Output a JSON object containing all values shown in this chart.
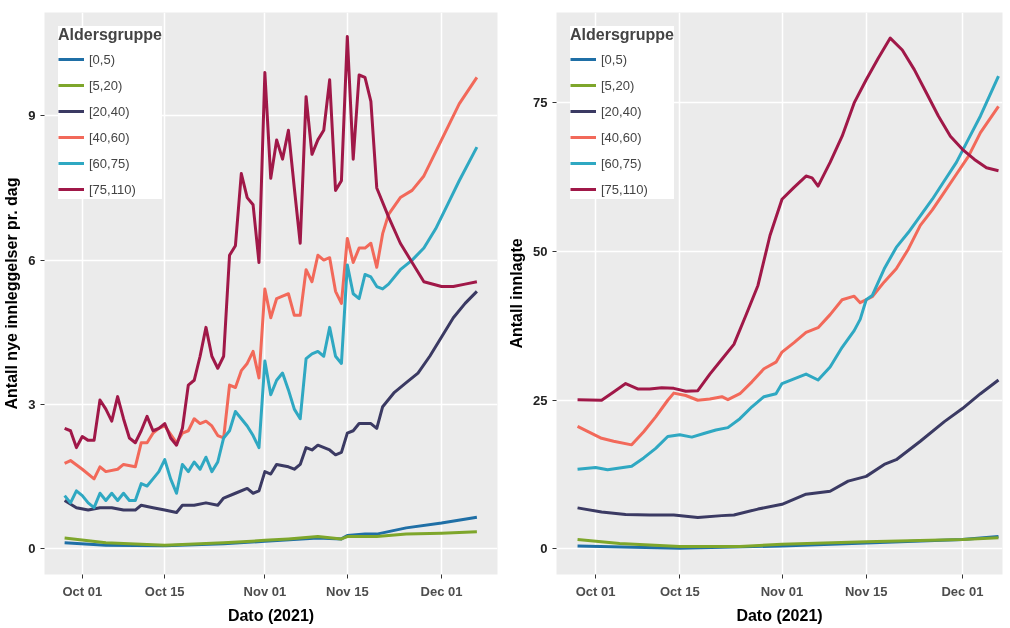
{
  "chart_data": [
    {
      "type": "line",
      "xlabel": "Dato (2021)",
      "ylabel": "Antall nye innleggelser pr. dag",
      "legend_title": "Aldersgruppe",
      "legend": "top left",
      "grid": true,
      "xlim": [
        "2021-09-24T14:00",
        "2021-12-10T12:00"
      ],
      "ylim": [
        -0.54,
        11.15
      ],
      "xticks": [
        {
          "value": "2021-10-01",
          "label": "Oct 01"
        },
        {
          "value": "2021-10-15",
          "label": "Oct 15"
        },
        {
          "value": "2021-11-01",
          "label": "Nov 01"
        },
        {
          "value": "2021-11-15",
          "label": "Nov 15"
        },
        {
          "value": "2021-12-01",
          "label": "Dec 01"
        }
      ],
      "yticks": [
        0,
        3,
        6,
        9
      ],
      "series": [
        {
          "name": "[0,5)",
          "color": "#1f6fa6",
          "x": [
            "2021-09-28",
            "2021-10-05",
            "2021-10-15",
            "2021-10-25",
            "2021-11-01",
            "2021-11-10",
            "2021-11-14",
            "2021-11-15",
            "2021-11-18",
            "2021-11-20",
            "2021-11-25",
            "2021-12-01",
            "2021-12-07"
          ],
          "values": [
            0.12,
            0.07,
            0.06,
            0.1,
            0.15,
            0.22,
            0.2,
            0.27,
            0.3,
            0.3,
            0.43,
            0.53,
            0.65
          ]
        },
        {
          "name": "[5,20)",
          "color": "#7ea62b",
          "x": [
            "2021-09-28",
            "2021-10-05",
            "2021-10-15",
            "2021-10-25",
            "2021-11-01",
            "2021-11-05",
            "2021-11-10",
            "2021-11-14",
            "2021-11-15",
            "2021-11-20",
            "2021-11-25",
            "2021-12-01",
            "2021-12-07"
          ],
          "values": [
            0.22,
            0.12,
            0.07,
            0.12,
            0.17,
            0.2,
            0.25,
            0.2,
            0.25,
            0.25,
            0.3,
            0.32,
            0.35
          ]
        },
        {
          "name": "[20,40)",
          "color": "#3b3a63",
          "x": [
            "2021-09-28",
            "2021-09-30",
            "2021-10-02",
            "2021-10-04",
            "2021-10-06",
            "2021-10-08",
            "2021-10-10",
            "2021-10-11",
            "2021-10-13",
            "2021-10-15",
            "2021-10-17",
            "2021-10-18",
            "2021-10-20",
            "2021-10-22",
            "2021-10-24",
            "2021-10-25",
            "2021-10-27",
            "2021-10-29",
            "2021-10-30",
            "2021-10-31",
            "2021-11-01",
            "2021-11-02",
            "2021-11-03",
            "2021-11-05",
            "2021-11-06",
            "2021-11-07",
            "2021-11-08",
            "2021-11-09",
            "2021-11-10",
            "2021-11-12",
            "2021-11-13",
            "2021-11-14",
            "2021-11-15",
            "2021-11-16",
            "2021-11-17",
            "2021-11-19",
            "2021-11-20",
            "2021-11-21",
            "2021-11-23",
            "2021-11-25",
            "2021-11-27",
            "2021-11-29",
            "2021-12-01",
            "2021-12-03",
            "2021-12-05",
            "2021-12-07"
          ],
          "values": [
            1.0,
            0.85,
            0.8,
            0.85,
            0.85,
            0.8,
            0.8,
            0.9,
            0.85,
            0.8,
            0.75,
            0.9,
            0.9,
            0.95,
            0.9,
            1.05,
            1.15,
            1.25,
            1.15,
            1.2,
            1.6,
            1.55,
            1.75,
            1.7,
            1.65,
            1.75,
            2.1,
            2.05,
            2.15,
            2.05,
            1.95,
            2.0,
            2.4,
            2.45,
            2.6,
            2.6,
            2.5,
            2.95,
            3.25,
            3.45,
            3.65,
            4.0,
            4.4,
            4.8,
            5.1,
            5.35
          ]
        },
        {
          "name": "[40,60)",
          "color": "#f2695a",
          "x": [
            "2021-09-28",
            "2021-09-29",
            "2021-10-01",
            "2021-10-03",
            "2021-10-04",
            "2021-10-05",
            "2021-10-07",
            "2021-10-08",
            "2021-10-10",
            "2021-10-11",
            "2021-10-12",
            "2021-10-13",
            "2021-10-14",
            "2021-10-15",
            "2021-10-17",
            "2021-10-18",
            "2021-10-19",
            "2021-10-20",
            "2021-10-21",
            "2021-10-22",
            "2021-10-23",
            "2021-10-24",
            "2021-10-25",
            "2021-10-26",
            "2021-10-27",
            "2021-10-28",
            "2021-10-29",
            "2021-10-30",
            "2021-10-31",
            "2021-11-01",
            "2021-11-02",
            "2021-11-03",
            "2021-11-04",
            "2021-11-05",
            "2021-11-06",
            "2021-11-07",
            "2021-11-08",
            "2021-11-09",
            "2021-11-10",
            "2021-11-11",
            "2021-11-12",
            "2021-11-13",
            "2021-11-14",
            "2021-11-15",
            "2021-11-16",
            "2021-11-17",
            "2021-11-18",
            "2021-11-19",
            "2021-11-20",
            "2021-11-21",
            "2021-11-22",
            "2021-11-24",
            "2021-11-26",
            "2021-11-28",
            "2021-11-30",
            "2021-12-02",
            "2021-12-04",
            "2021-12-07"
          ],
          "values": [
            1.77,
            1.83,
            1.65,
            1.45,
            1.7,
            1.6,
            1.65,
            1.75,
            1.7,
            2.2,
            2.2,
            2.4,
            2.5,
            2.55,
            2.2,
            2.4,
            2.45,
            2.7,
            2.6,
            2.65,
            2.55,
            2.35,
            2.3,
            3.4,
            3.35,
            3.7,
            3.85,
            4.1,
            3.55,
            5.4,
            4.8,
            5.2,
            5.25,
            5.3,
            4.85,
            4.85,
            5.8,
            5.55,
            6.1,
            6.0,
            6.05,
            5.35,
            5.1,
            6.45,
            5.95,
            6.25,
            6.25,
            6.35,
            5.85,
            6.55,
            6.95,
            7.3,
            7.45,
            7.75,
            8.25,
            8.75,
            9.25,
            9.8
          ]
        },
        {
          "name": "[60,75)",
          "color": "#2fa8c2",
          "x": [
            "2021-09-28",
            "2021-09-29",
            "2021-09-30",
            "2021-10-01",
            "2021-10-02",
            "2021-10-03",
            "2021-10-04",
            "2021-10-05",
            "2021-10-06",
            "2021-10-07",
            "2021-10-08",
            "2021-10-09",
            "2021-10-10",
            "2021-10-11",
            "2021-10-12",
            "2021-10-13",
            "2021-10-14",
            "2021-10-15",
            "2021-10-16",
            "2021-10-17",
            "2021-10-18",
            "2021-10-19",
            "2021-10-20",
            "2021-10-21",
            "2021-10-22",
            "2021-10-23",
            "2021-10-24",
            "2021-10-25",
            "2021-10-26",
            "2021-10-27",
            "2021-10-28",
            "2021-10-29",
            "2021-10-30",
            "2021-10-31",
            "2021-11-01",
            "2021-11-02",
            "2021-11-03",
            "2021-11-04",
            "2021-11-05",
            "2021-11-06",
            "2021-11-07",
            "2021-11-08",
            "2021-11-09",
            "2021-11-10",
            "2021-11-11",
            "2021-11-12",
            "2021-11-13",
            "2021-11-14",
            "2021-11-15",
            "2021-11-16",
            "2021-11-17",
            "2021-11-18",
            "2021-11-19",
            "2021-11-20",
            "2021-11-21",
            "2021-11-22",
            "2021-11-24",
            "2021-11-26",
            "2021-11-28",
            "2021-11-30",
            "2021-12-02",
            "2021-12-04",
            "2021-12-07"
          ],
          "values": [
            1.1,
            0.95,
            1.2,
            1.1,
            0.95,
            0.85,
            1.15,
            1.0,
            1.15,
            1.0,
            1.15,
            1.0,
            1.0,
            1.35,
            1.3,
            1.45,
            1.6,
            1.85,
            1.45,
            1.15,
            1.75,
            1.6,
            1.8,
            1.65,
            1.9,
            1.6,
            1.8,
            2.3,
            2.45,
            2.85,
            2.7,
            2.55,
            2.35,
            2.1,
            3.9,
            3.2,
            3.5,
            3.65,
            3.3,
            2.9,
            2.7,
            3.95,
            4.05,
            4.1,
            4.0,
            4.6,
            4.0,
            3.85,
            5.9,
            5.3,
            5.2,
            5.7,
            5.65,
            5.45,
            5.4,
            5.5,
            5.8,
            6.0,
            6.25,
            6.65,
            7.15,
            7.65,
            8.35
          ]
        },
        {
          "name": "[75,110)",
          "color": "#a01848",
          "x": [
            "2021-09-28",
            "2021-09-29",
            "2021-09-30",
            "2021-10-01",
            "2021-10-02",
            "2021-10-03",
            "2021-10-04",
            "2021-10-05",
            "2021-10-06",
            "2021-10-07",
            "2021-10-08",
            "2021-10-09",
            "2021-10-10",
            "2021-10-11",
            "2021-10-12",
            "2021-10-13",
            "2021-10-14",
            "2021-10-15",
            "2021-10-16",
            "2021-10-17",
            "2021-10-18",
            "2021-10-19",
            "2021-10-20",
            "2021-10-21",
            "2021-10-22",
            "2021-10-23",
            "2021-10-24",
            "2021-10-25",
            "2021-10-26",
            "2021-10-27",
            "2021-10-28",
            "2021-10-29",
            "2021-10-30",
            "2021-10-31",
            "2021-11-01",
            "2021-11-02",
            "2021-11-03",
            "2021-11-04",
            "2021-11-05",
            "2021-11-06",
            "2021-11-07",
            "2021-11-08",
            "2021-11-09",
            "2021-11-10",
            "2021-11-11",
            "2021-11-12",
            "2021-11-13",
            "2021-11-14",
            "2021-11-15",
            "2021-11-16",
            "2021-11-17",
            "2021-11-18",
            "2021-11-19",
            "2021-11-20",
            "2021-11-22",
            "2021-11-24",
            "2021-11-26",
            "2021-11-28",
            "2021-12-01",
            "2021-12-03",
            "2021-12-05",
            "2021-12-07"
          ],
          "values": [
            2.5,
            2.45,
            2.1,
            2.33,
            2.25,
            2.25,
            3.09,
            2.9,
            2.65,
            3.16,
            2.7,
            2.3,
            2.2,
            2.45,
            2.75,
            2.45,
            2.5,
            2.6,
            2.3,
            2.15,
            2.5,
            3.4,
            3.5,
            4.0,
            4.6,
            4.0,
            3.75,
            4.0,
            6.1,
            6.3,
            7.8,
            7.3,
            7.15,
            5.95,
            9.9,
            7.7,
            8.5,
            8.1,
            8.7,
            7.5,
            6.35,
            9.4,
            8.2,
            8.5,
            8.7,
            9.75,
            7.45,
            7.65,
            10.65,
            8.1,
            9.85,
            9.8,
            9.3,
            7.5,
            6.9,
            6.35,
            5.95,
            5.55,
            5.45,
            5.45,
            5.5,
            5.55
          ]
        }
      ]
    },
    {
      "type": "line",
      "xlabel": "Dato (2021)",
      "ylabel": "Antall innlagte",
      "legend_title": "Aldersgruppe",
      "legend": "top left",
      "grid": true,
      "xlim": [
        "2021-09-24T12:00",
        "2021-12-07T16:00"
      ],
      "ylim": [
        -4.3,
        90.2
      ],
      "xticks": [
        {
          "value": "2021-10-01",
          "label": "Oct 01"
        },
        {
          "value": "2021-10-15",
          "label": "Oct 15"
        },
        {
          "value": "2021-11-01",
          "label": "Nov 01"
        },
        {
          "value": "2021-11-15",
          "label": "Nov 15"
        },
        {
          "value": "2021-12-01",
          "label": "Dec 01"
        }
      ],
      "yticks": [
        0,
        25,
        50,
        75
      ],
      "series": [
        {
          "name": "[0,5)",
          "color": "#1f6fa6",
          "x": [
            "2021-09-28",
            "2021-10-15",
            "2021-11-01",
            "2021-11-15",
            "2021-12-01",
            "2021-12-07"
          ],
          "values": [
            0.5,
            0.1,
            0.5,
            1.0,
            1.6,
            2.1
          ]
        },
        {
          "name": "[5,20)",
          "color": "#7ea62b",
          "x": [
            "2021-09-28",
            "2021-10-05",
            "2021-10-15",
            "2021-10-25",
            "2021-11-01",
            "2021-11-15",
            "2021-12-01",
            "2021-12-07"
          ],
          "values": [
            1.6,
            0.9,
            0.4,
            0.4,
            0.8,
            1.2,
            1.6,
            1.9
          ]
        },
        {
          "name": "[20,40)",
          "color": "#3b3a63",
          "x": [
            "2021-09-28",
            "2021-10-02",
            "2021-10-06",
            "2021-10-10",
            "2021-10-14",
            "2021-10-18",
            "2021-10-22",
            "2021-10-24",
            "2021-10-28",
            "2021-11-01",
            "2021-11-05",
            "2021-11-09",
            "2021-11-12",
            "2021-11-15",
            "2021-11-18",
            "2021-11-20",
            "2021-11-24",
            "2021-11-28",
            "2021-12-01",
            "2021-12-04",
            "2021-12-07"
          ],
          "values": [
            6.9,
            6.2,
            5.8,
            5.7,
            5.7,
            5.3,
            5.6,
            5.7,
            6.7,
            7.5,
            9.2,
            9.7,
            11.4,
            12.2,
            14.2,
            15.0,
            18.1,
            21.4,
            23.6,
            26.1,
            28.4
          ]
        },
        {
          "name": "[40,60)",
          "color": "#f2695a",
          "x": [
            "2021-09-28",
            "2021-10-02",
            "2021-10-04",
            "2021-10-07",
            "2021-10-09",
            "2021-10-11",
            "2021-10-13",
            "2021-10-14",
            "2021-10-16",
            "2021-10-18",
            "2021-10-20",
            "2021-10-22",
            "2021-10-23",
            "2021-10-25",
            "2021-10-27",
            "2021-10-29",
            "2021-10-31",
            "2021-11-01",
            "2021-11-03",
            "2021-11-05",
            "2021-11-07",
            "2021-11-09",
            "2021-11-11",
            "2021-11-13",
            "2021-11-14",
            "2021-11-16",
            "2021-11-18",
            "2021-11-20",
            "2021-11-22",
            "2021-11-24",
            "2021-11-26",
            "2021-11-28",
            "2021-11-30",
            "2021-12-02",
            "2021-12-04",
            "2021-12-07"
          ],
          "values": [
            20.6,
            18.6,
            18.1,
            17.5,
            19.7,
            22.2,
            25.0,
            26.2,
            25.8,
            25.0,
            25.2,
            25.6,
            25.1,
            26.1,
            28.1,
            30.3,
            31.4,
            33.1,
            34.7,
            36.4,
            37.2,
            39.4,
            41.9,
            42.5,
            41.4,
            42.4,
            44.9,
            47.1,
            50.4,
            54.4,
            57.0,
            60.0,
            63.0,
            66.0,
            70.0,
            74.4
          ]
        },
        {
          "name": "[60,75)",
          "color": "#2fa8c2",
          "x": [
            "2021-09-28",
            "2021-10-01",
            "2021-10-03",
            "2021-10-05",
            "2021-10-07",
            "2021-10-09",
            "2021-10-11",
            "2021-10-13",
            "2021-10-15",
            "2021-10-17",
            "2021-10-19",
            "2021-10-21",
            "2021-10-23",
            "2021-10-25",
            "2021-10-27",
            "2021-10-29",
            "2021-10-31",
            "2021-11-01",
            "2021-11-03",
            "2021-11-05",
            "2021-11-07",
            "2021-11-09",
            "2021-11-11",
            "2021-11-13",
            "2021-11-14",
            "2021-11-15",
            "2021-11-16",
            "2021-11-18",
            "2021-11-20",
            "2021-11-22",
            "2021-11-24",
            "2021-11-26",
            "2021-11-28",
            "2021-11-30",
            "2021-12-02",
            "2021-12-04",
            "2021-12-07"
          ],
          "values": [
            13.4,
            13.7,
            13.3,
            13.6,
            13.9,
            15.3,
            16.9,
            18.9,
            19.2,
            18.8,
            19.4,
            20.0,
            20.4,
            21.9,
            23.9,
            25.6,
            26.1,
            27.8,
            28.6,
            29.4,
            28.4,
            30.6,
            33.9,
            36.7,
            38.6,
            41.9,
            42.6,
            47.1,
            50.7,
            53.2,
            56.0,
            58.8,
            61.9,
            65.0,
            68.9,
            72.8,
            79.5
          ]
        },
        {
          "name": "[75,110)",
          "color": "#a01848",
          "x": [
            "2021-09-28",
            "2021-10-02",
            "2021-10-04",
            "2021-10-06",
            "2021-10-08",
            "2021-10-10",
            "2021-10-12",
            "2021-10-14",
            "2021-10-16",
            "2021-10-18",
            "2021-10-20",
            "2021-10-22",
            "2021-10-24",
            "2021-10-26",
            "2021-10-28",
            "2021-10-30",
            "2021-11-01",
            "2021-11-03",
            "2021-11-05",
            "2021-11-06",
            "2021-11-07",
            "2021-11-09",
            "2021-11-11",
            "2021-11-13",
            "2021-11-15",
            "2021-11-17",
            "2021-11-19",
            "2021-11-21",
            "2021-11-23",
            "2021-11-25",
            "2021-11-27",
            "2021-11-29",
            "2021-12-01",
            "2021-12-03",
            "2021-12-05",
            "2021-12-07"
          ],
          "values": [
            25.1,
            25.0,
            26.4,
            27.8,
            26.9,
            26.9,
            27.1,
            27.0,
            26.5,
            26.6,
            29.4,
            31.9,
            34.4,
            39.3,
            44.3,
            52.7,
            58.8,
            60.8,
            62.7,
            62.4,
            61.0,
            65.0,
            69.4,
            75.0,
            78.9,
            82.5,
            85.9,
            83.9,
            80.6,
            76.7,
            72.8,
            69.4,
            67.2,
            65.5,
            64.1,
            63.6
          ]
        }
      ]
    }
  ]
}
